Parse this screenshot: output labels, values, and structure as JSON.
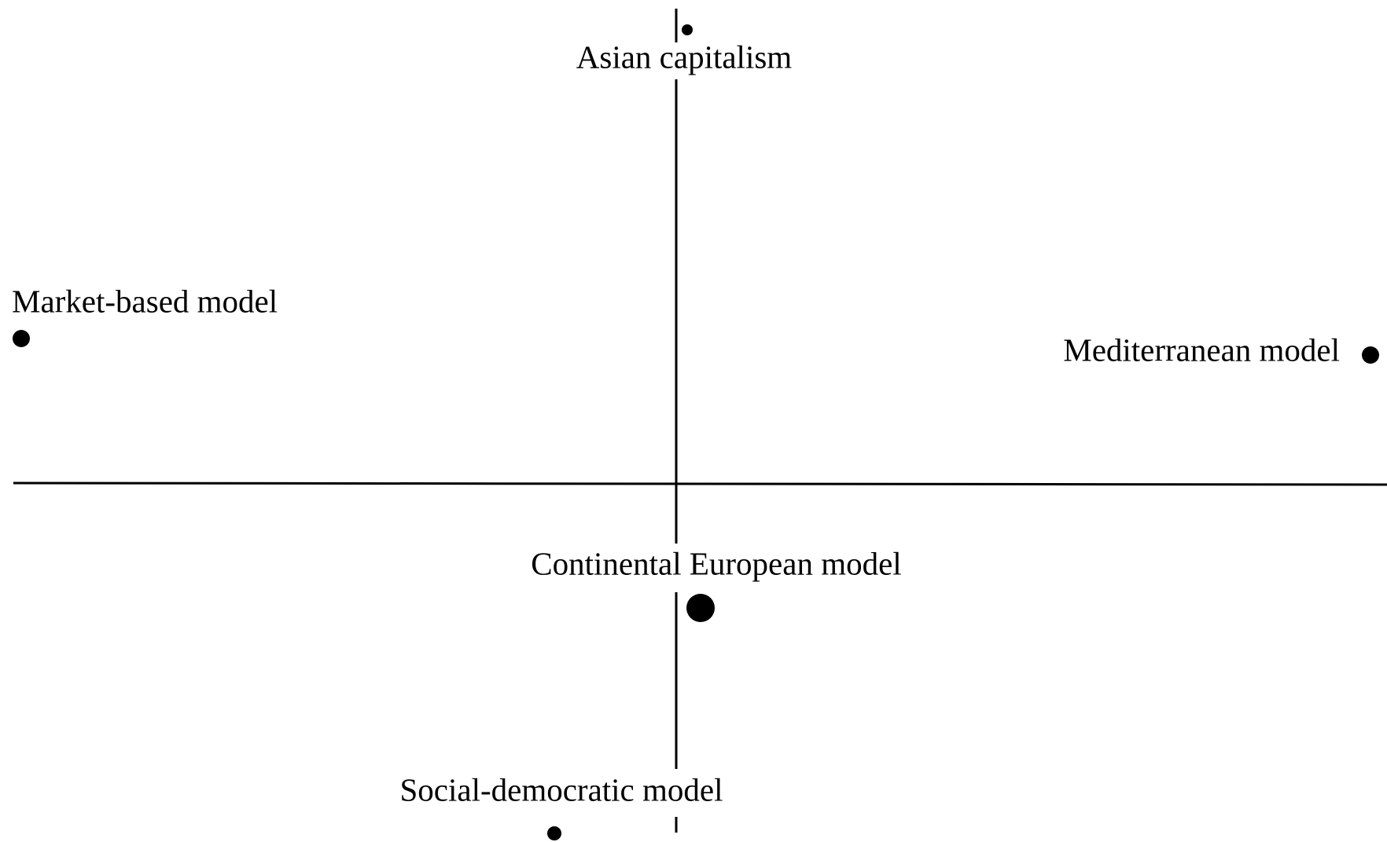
{
  "nodes": [
    {
      "label": "Asian capitalism"
    },
    {
      "label": "Market-based model"
    },
    {
      "label": "Mediterranean model"
    },
    {
      "label": "Continental European model"
    },
    {
      "label": "Social-democratic model"
    }
  ]
}
